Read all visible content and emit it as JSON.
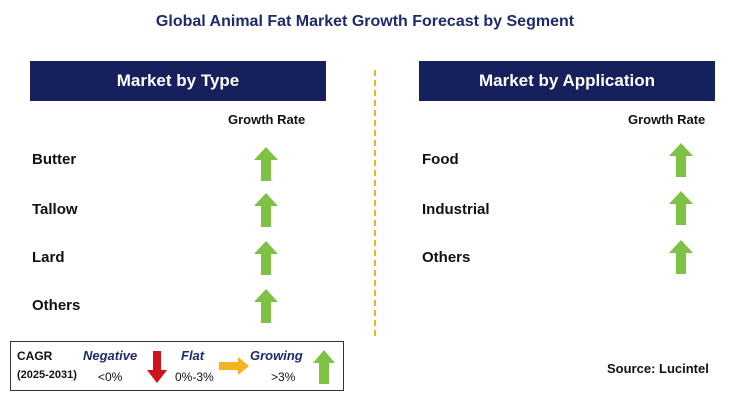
{
  "title": "Global Animal Fat Market Growth Forecast by Segment",
  "colors": {
    "header_bg": "#15205c",
    "up_arrow": "#7dc242",
    "down_arrow": "#d0121b",
    "flat_arrow": "#f5b320"
  },
  "left_panel": {
    "header": "Market by Type",
    "growth_label": "Growth Rate",
    "rows": [
      {
        "label": "Butter",
        "trend": "up-arrow-icon"
      },
      {
        "label": "Tallow",
        "trend": "up-arrow-icon"
      },
      {
        "label": "Lard",
        "trend": "up-arrow-icon"
      },
      {
        "label": "Others",
        "trend": "up-arrow-icon"
      }
    ]
  },
  "right_panel": {
    "header": "Market by Application",
    "growth_label": "Growth Rate",
    "rows": [
      {
        "label": "Food",
        "trend": "up-arrow-icon"
      },
      {
        "label": "Industrial",
        "trend": "up-arrow-icon"
      },
      {
        "label": "Others",
        "trend": "up-arrow-icon"
      }
    ]
  },
  "legend": {
    "cagr": "CAGR",
    "period": "(2025-2031)",
    "negative": "Negative",
    "negative_range": "<0%",
    "flat": "Flat",
    "flat_range": "0%-3%",
    "growing": "Growing",
    "growing_range": ">3%"
  },
  "source": "Source: Lucintel"
}
